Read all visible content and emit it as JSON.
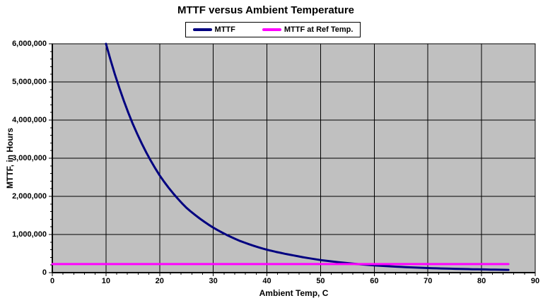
{
  "chart_data": {
    "type": "line",
    "title": "MTTF versus Ambient Temperature",
    "xlabel": "Ambient Temp, C",
    "ylabel": "MTTF, in Hours",
    "xlim": [
      0,
      90
    ],
    "ylim": [
      0,
      6000000
    ],
    "x_major_step": 10,
    "x_minor_step": 2,
    "y_major_step": 1000000,
    "y_minor_step": 200000,
    "x_tick_labels": [
      "0",
      "10",
      "20",
      "30",
      "40",
      "50",
      "60",
      "70",
      "80",
      "90"
    ],
    "y_tick_labels": [
      "0",
      "1,000,000",
      "2,000,000",
      "3,000,000",
      "4,000,000",
      "5,000,000",
      "6,000,000"
    ],
    "grid": true,
    "legend_position": "top",
    "colors": {
      "plot_background": "#c0c0c0",
      "gridline": "#000000",
      "axis": "#000000",
      "mttf_series": "#000080",
      "ref_temp_series": "#ff00ff"
    },
    "series": [
      {
        "name": "MTTF",
        "color": "#000080",
        "interpolation": "log-smooth",
        "x": [
          10,
          15,
          20,
          25,
          30,
          35,
          40,
          45,
          50,
          55,
          60,
          65,
          70,
          75,
          80,
          85
        ],
        "y": [
          6000000,
          3900000,
          2550000,
          1700000,
          1180000,
          830000,
          600000,
          450000,
          330000,
          250000,
          190000,
          150000,
          120000,
          100000,
          85000,
          72000
        ]
      },
      {
        "name": "MTTF at Ref Temp.",
        "color": "#ff00ff",
        "interpolation": "linear",
        "x": [
          0,
          85
        ],
        "y": [
          225000,
          225000
        ]
      }
    ]
  }
}
